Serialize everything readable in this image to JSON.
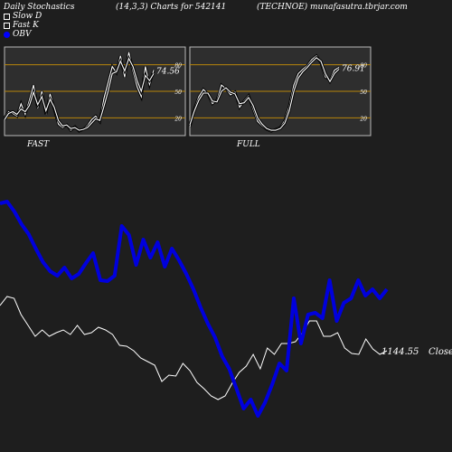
{
  "header": {
    "left": "Daily Stochastics",
    "params": "(14,3,3) Charts for 542141",
    "right": "(TECHNOE) munafasutra.tbrjar.com"
  },
  "legend": [
    {
      "label": "Slow  D",
      "color": "#ffffff",
      "marker": "outline-square"
    },
    {
      "label": "Fast K",
      "color": "#ffffff",
      "marker": "outline-square"
    },
    {
      "label": "OBV",
      "color": "#0000ff",
      "marker": "filled-circle"
    }
  ],
  "colors": {
    "background": "#1e1e1e",
    "panel": "#2e2e2e",
    "level_line": "#b8860b",
    "stoch_line": "#ffffff",
    "obv": "#0000dd",
    "close": "#ffffff"
  },
  "chart_data": [
    {
      "type": "line",
      "panel": "FAST",
      "label": "FAST",
      "value_label": "74.56",
      "ylim": [
        0,
        100
      ],
      "levels": [
        20,
        50,
        80
      ],
      "ticks": [
        "80",
        "50",
        "20"
      ],
      "series": [
        {
          "values": [
            20,
            27,
            25,
            22,
            36,
            24,
            40,
            57,
            31,
            50,
            24,
            47,
            30,
            13,
            9,
            12,
            6,
            10,
            5,
            7,
            11,
            18,
            22,
            16,
            42,
            60,
            78,
            71,
            90,
            66,
            94,
            73,
            55,
            44,
            78,
            58,
            74
          ]
        },
        {
          "values": [
            18,
            25,
            27,
            24,
            30,
            27,
            34,
            49,
            35,
            44,
            28,
            41,
            32,
            17,
            11,
            12,
            8,
            9,
            6,
            7,
            9,
            14,
            19,
            17,
            33,
            50,
            70,
            72,
            84,
            73,
            87,
            78,
            62,
            50,
            68,
            62,
            70
          ]
        }
      ]
    },
    {
      "type": "line",
      "panel": "FULL",
      "label": "FULL",
      "value_label": "76.91",
      "ylim": [
        0,
        100
      ],
      "levels": [
        20,
        50,
        80
      ],
      "ticks": [
        "80",
        "50",
        "20"
      ],
      "series": [
        {
          "values": [
            10,
            30,
            44,
            52,
            47,
            36,
            40,
            57,
            53,
            46,
            49,
            32,
            39,
            45,
            30,
            16,
            11,
            7,
            5,
            7,
            9,
            17,
            33,
            57,
            70,
            75,
            79,
            86,
            90,
            82,
            66,
            63,
            74,
            77
          ]
        },
        {
          "values": [
            12,
            28,
            40,
            48,
            48,
            39,
            38,
            50,
            54,
            49,
            47,
            36,
            37,
            43,
            34,
            20,
            13,
            8,
            6,
            6,
            8,
            14,
            28,
            50,
            65,
            72,
            77,
            83,
            88,
            84,
            70,
            61,
            70,
            75
          ]
        }
      ]
    },
    {
      "type": "line",
      "panel": "price-obv",
      "close_label": "1144.55",
      "close_suffix": "Close",
      "series": [
        {
          "name": "OBV",
          "values": [
            225,
            223,
            234,
            248,
            259,
            275,
            290,
            300,
            305,
            296,
            308,
            303,
            291,
            280,
            310,
            311,
            305,
            250,
            260,
            293,
            265,
            285,
            268,
            295,
            275,
            288,
            303,
            320,
            340,
            358,
            373,
            394,
            408,
            430,
            452,
            442,
            460,
            445,
            425,
            402,
            410,
            330,
            380,
            348,
            346,
            352,
            310,
            355,
            335,
            330,
            310,
            327,
            320,
            330,
            320
          ]
        },
        {
          "name": "Close",
          "values": [
            338,
            328,
            330,
            348,
            360,
            372,
            365,
            372,
            368,
            365,
            370,
            360,
            370,
            368,
            362,
            365,
            370,
            382,
            383,
            388,
            396,
            400,
            404,
            422,
            415,
            416,
            402,
            410,
            423,
            430,
            438,
            442,
            438,
            424,
            412,
            405,
            392,
            408,
            385,
            392,
            380,
            380,
            378,
            368,
            355,
            355,
            372,
            372,
            368,
            385,
            391,
            392,
            375,
            386,
            392,
            388
          ]
        }
      ]
    }
  ]
}
